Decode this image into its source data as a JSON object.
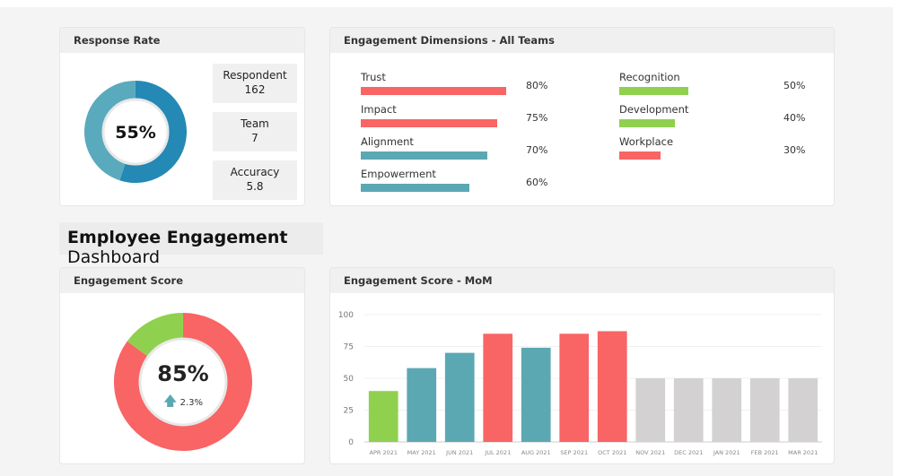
{
  "colors": {
    "red": "#f96464",
    "teal": "#5ba8b3",
    "green": "#8fd14f",
    "gray": "#d3d1d1",
    "blue_dark": "#2489b5",
    "blue_light": "#5aaabd"
  },
  "response_rate": {
    "title": "Response Rate",
    "value": 55,
    "value_label": "55%",
    "stats": [
      {
        "label": "Respondent",
        "value": "162"
      },
      {
        "label": "Team",
        "value": "7"
      },
      {
        "label": "Accuracy",
        "value": "5.8"
      }
    ]
  },
  "dimensions": {
    "title": "Engagement Dimensions  - All Teams",
    "left": [
      {
        "label": "Trust",
        "value": 80,
        "value_label": "80%",
        "color": "red"
      },
      {
        "label": "Impact",
        "value": 75,
        "value_label": "75%",
        "color": "red"
      },
      {
        "label": "Alignment",
        "value": 70,
        "value_label": "70%",
        "color": "teal"
      },
      {
        "label": "Empowerment",
        "value": 60,
        "value_label": "60%",
        "color": "teal"
      }
    ],
    "right": [
      {
        "label": "Recognition",
        "value": 50,
        "value_label": "50%",
        "color": "green"
      },
      {
        "label": "Development",
        "value": 40,
        "value_label": "40%",
        "color": "green"
      },
      {
        "label": "Workplace",
        "value": 30,
        "value_label": "30%",
        "color": "red"
      }
    ]
  },
  "dashboard_title": {
    "bold": "Employee Engagement",
    "rest": " Dashboard"
  },
  "engagement_score": {
    "title": "Engagement Score",
    "value": 85,
    "value_label": "85%",
    "change": "2.3%",
    "change_icon": "arrow-up-icon"
  },
  "chart_data": {
    "type": "bar",
    "title": "Engagement Score - MoM",
    "ylim": [
      0,
      100
    ],
    "yticks": [
      "0",
      "25",
      "50",
      "75",
      "100"
    ],
    "categories": [
      "APR 2021",
      "MAY 2021",
      "JUN 2021",
      "JUL 2021",
      "AUG 2021",
      "SEP 2021",
      "OCT 2021",
      "NOV 2021",
      "DEC 2021",
      "JAN 2021",
      "FEB 2021",
      "MAR 2021"
    ],
    "values": [
      40,
      58,
      70,
      85,
      74,
      85,
      87,
      50,
      50,
      50,
      50,
      50
    ],
    "colors": [
      "green",
      "teal",
      "teal",
      "red",
      "teal",
      "red",
      "red",
      "gray",
      "gray",
      "gray",
      "gray",
      "gray"
    ],
    "grid": true
  }
}
